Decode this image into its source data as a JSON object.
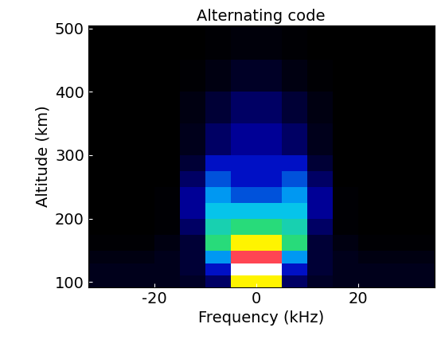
{
  "chart_data": {
    "type": "heatmap",
    "title": "Alternating code",
    "x_label": "Frequency (kHz)",
    "y_label": "Altitude (km)",
    "xlim": [
      -33,
      35
    ],
    "ylim": [
      92,
      505
    ],
    "xticks": [
      -20,
      0,
      20
    ],
    "yticks": [
      100,
      200,
      300,
      400,
      500
    ],
    "x_edges": [
      -35,
      -30,
      -25,
      -20,
      -15,
      -10,
      -5,
      0,
      5,
      10,
      15,
      20,
      25,
      30,
      35
    ],
    "y_edges": [
      92,
      110,
      130,
      150,
      175,
      200,
      225,
      250,
      275,
      300,
      350,
      400,
      450,
      505
    ],
    "cells": [
      [
        0.1,
        0.1,
        0.1,
        0.1,
        0.12,
        0.2,
        0.7,
        0.7,
        0.2,
        0.12,
        0.1,
        0.1,
        0.1,
        0.1
      ],
      [
        0.1,
        0.1,
        0.1,
        0.1,
        0.15,
        0.3,
        1.0,
        1.0,
        0.3,
        0.15,
        0.1,
        0.1,
        0.1,
        0.1
      ],
      [
        0.08,
        0.08,
        0.08,
        0.1,
        0.15,
        0.4,
        0.85,
        0.85,
        0.4,
        0.15,
        0.1,
        0.08,
        0.08,
        0.08
      ],
      [
        0.06,
        0.06,
        0.06,
        0.08,
        0.15,
        0.55,
        0.7,
        0.7,
        0.55,
        0.15,
        0.08,
        0.06,
        0.06,
        0.06
      ],
      [
        0.05,
        0.05,
        0.05,
        0.06,
        0.2,
        0.5,
        0.55,
        0.55,
        0.5,
        0.2,
        0.06,
        0.05,
        0.05,
        0.05
      ],
      [
        0.05,
        0.05,
        0.05,
        0.06,
        0.25,
        0.45,
        0.45,
        0.45,
        0.45,
        0.25,
        0.06,
        0.05,
        0.05,
        0.05
      ],
      [
        0.05,
        0.05,
        0.05,
        0.06,
        0.25,
        0.4,
        0.35,
        0.35,
        0.4,
        0.25,
        0.06,
        0.05,
        0.05,
        0.05
      ],
      [
        0.05,
        0.05,
        0.05,
        0.05,
        0.2,
        0.35,
        0.3,
        0.3,
        0.35,
        0.2,
        0.05,
        0.05,
        0.05,
        0.05
      ],
      [
        0.05,
        0.05,
        0.05,
        0.05,
        0.15,
        0.3,
        0.3,
        0.3,
        0.3,
        0.15,
        0.05,
        0.05,
        0.05,
        0.05
      ],
      [
        0.05,
        0.05,
        0.05,
        0.05,
        0.1,
        0.2,
        0.25,
        0.25,
        0.2,
        0.1,
        0.05,
        0.05,
        0.05,
        0.05
      ],
      [
        0.05,
        0.05,
        0.05,
        0.05,
        0.08,
        0.15,
        0.2,
        0.2,
        0.15,
        0.08,
        0.05,
        0.05,
        0.05,
        0.05
      ],
      [
        0.05,
        0.05,
        0.05,
        0.05,
        0.06,
        0.08,
        0.12,
        0.12,
        0.08,
        0.06,
        0.05,
        0.05,
        0.05,
        0.05
      ],
      [
        0.05,
        0.05,
        0.05,
        0.05,
        0.05,
        0.06,
        0.07,
        0.07,
        0.06,
        0.05,
        0.05,
        0.05,
        0.05,
        0.05
      ]
    ]
  }
}
